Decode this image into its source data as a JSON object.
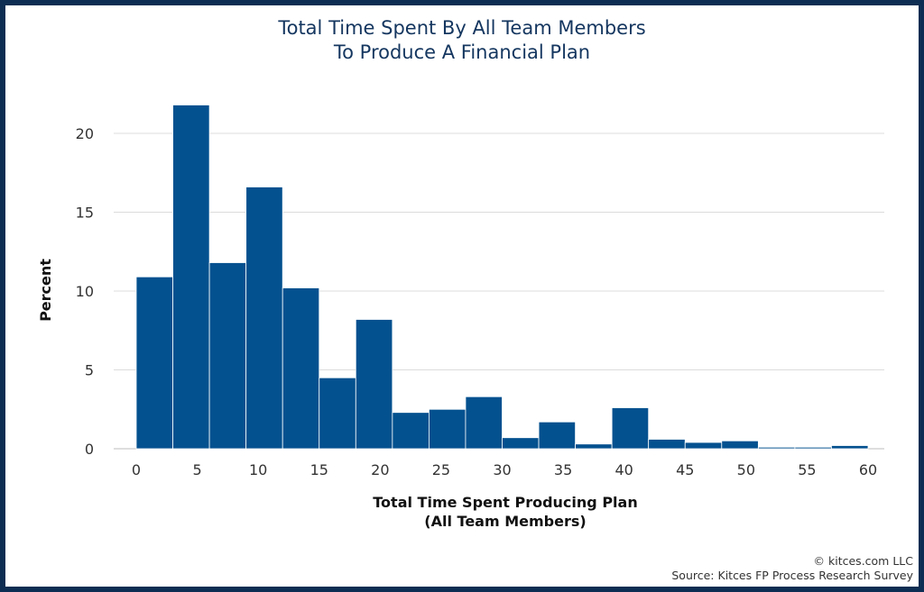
{
  "chart_data": {
    "type": "bar",
    "title_line1": "Total Time Spent By All Team Members",
    "title_line2": "To Produce A Financial Plan",
    "xlabel_line1": "Total Time Spent Producing Plan",
    "xlabel_line2": "(All Team Members)",
    "ylabel": "Percent",
    "xlim": [
      -1,
      61
    ],
    "ylim": [
      0,
      23
    ],
    "bin_width": 3,
    "bin_starts": [
      0,
      3,
      6,
      9,
      12,
      15,
      18,
      21,
      24,
      27,
      30,
      33,
      36,
      39,
      42,
      45,
      48,
      51,
      54,
      57
    ],
    "values": [
      10.9,
      21.8,
      11.8,
      16.6,
      10.2,
      4.5,
      8.2,
      2.3,
      2.5,
      3.3,
      0.7,
      1.7,
      0.3,
      2.6,
      0.6,
      0.4,
      0.5,
      0.1,
      0.1,
      0.2
    ],
    "x_ticks": [
      0,
      5,
      10,
      15,
      20,
      25,
      30,
      35,
      40,
      45,
      50,
      55,
      60
    ],
    "y_ticks": [
      0,
      5,
      10,
      15,
      20
    ],
    "bar_color": "#04518f",
    "grid": true
  },
  "credits": {
    "copyright": "© kitces.com LLC",
    "source": "Source: Kitces FP Process Research Survey"
  }
}
